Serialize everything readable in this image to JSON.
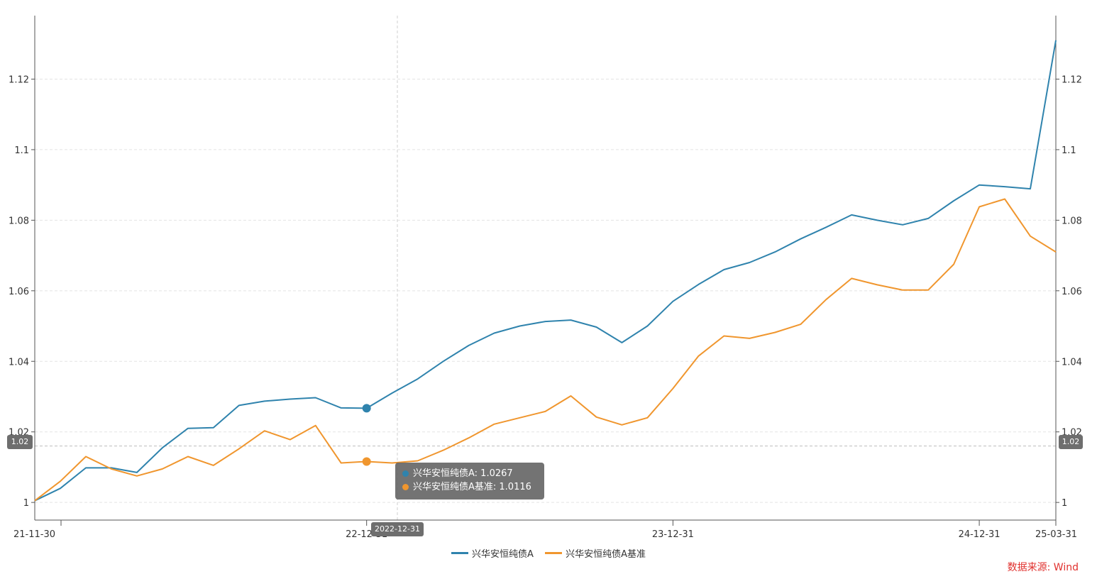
{
  "chart_data": {
    "type": "line",
    "x_tick_labels": [
      "21-11-30",
      "22-12-31",
      "23-12-31",
      "24-12-31",
      "25-03-31"
    ],
    "y_tick_labels": [
      "1",
      "1.02",
      "1.04",
      "1.06",
      "1.08",
      "1.1",
      "1.12"
    ],
    "ylim": [
      0.995,
      1.138
    ],
    "grid": true,
    "legend_position": "bottom-center",
    "series": [
      {
        "name": "兴华安恒纯债A",
        "color": "#2f83ad",
        "values": [
          1.0005,
          1.004,
          1.0098,
          1.0098,
          1.0085,
          1.0155,
          1.021,
          1.0212,
          1.0275,
          1.0287,
          1.0293,
          1.0297,
          1.0268,
          1.0267,
          1.031,
          1.035,
          1.04,
          1.0445,
          1.048,
          1.05,
          1.0513,
          1.0517,
          1.0497,
          1.0453,
          1.05,
          1.057,
          1.0618,
          1.066,
          1.068,
          1.071,
          1.0747,
          1.078,
          1.0815,
          1.08,
          1.0787,
          1.0805,
          1.0855,
          1.09,
          1.0895,
          1.0889,
          1.131
        ]
      },
      {
        "name": "兴华安恒纯债A基准",
        "color": "#f0962e",
        "values": [
          1.0005,
          1.006,
          1.013,
          1.0095,
          1.0075,
          1.0095,
          1.013,
          1.0105,
          1.0152,
          1.0203,
          1.0178,
          1.0218,
          1.0112,
          1.0116,
          1.0112,
          1.0118,
          1.0148,
          1.0183,
          1.0222,
          1.024,
          1.0258,
          1.0302,
          1.0242,
          1.022,
          1.024,
          1.0323,
          1.0415,
          1.0472,
          1.0465,
          1.0482,
          1.0505,
          1.0575,
          1.0635,
          1.0617,
          1.0602,
          1.0602,
          1.0675,
          1.0838,
          1.086,
          1.0755,
          1.071
        ]
      }
    ],
    "tooltip": {
      "date": "2022-12-31",
      "rows": [
        "兴华安恒纯债A: 1.0267",
        "兴华安恒纯债A基准: 1.0116"
      ]
    },
    "crosshair_value": "1.02",
    "source": "数据来源: Wind"
  }
}
